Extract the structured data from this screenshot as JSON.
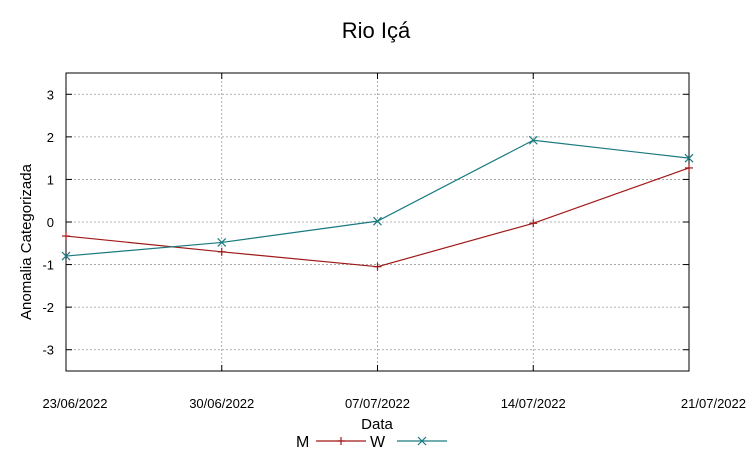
{
  "chart_data": {
    "type": "line",
    "title": "Rio Içá",
    "xlabel": "Data",
    "ylabel": "Anomalia Categorizada",
    "categories": [
      "23/06/2022",
      "30/06/2022",
      "07/07/2022",
      "14/07/2022",
      "21/07/2022"
    ],
    "ylim": [
      -3.5,
      3.5
    ],
    "yticks": [
      "3",
      "2",
      "1",
      "0",
      "-1",
      "-2",
      "-3"
    ],
    "ytick_values": [
      3,
      2,
      1,
      0,
      -1,
      -2,
      -3
    ],
    "grid": true,
    "legend_position": "bottom-center",
    "series": [
      {
        "name": "M",
        "color": "#a01818",
        "marker": "plus",
        "x": [
          0,
          1,
          2,
          3,
          4
        ],
        "values": [
          -0.33,
          -0.7,
          -1.05,
          -0.03,
          1.27
        ]
      },
      {
        "name": "W",
        "color": "#1a7a80",
        "marker": "cross",
        "x": [
          0,
          1,
          2,
          3,
          4
        ],
        "values": [
          -0.8,
          -0.48,
          0.02,
          1.92,
          1.5
        ]
      }
    ]
  }
}
